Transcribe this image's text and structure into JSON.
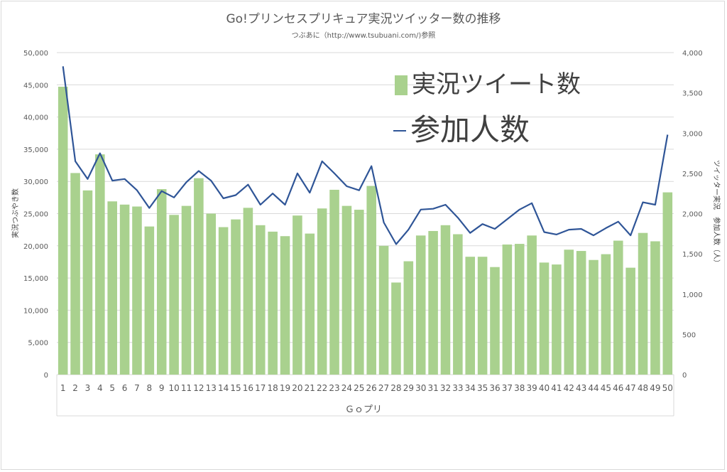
{
  "chart_data": {
    "type": "bar",
    "title": "Go!プリンセスプリキュア実況ツイッター数の推移",
    "subtitle": "つぶあに（http://www.tsubuani.com/)参照",
    "xlabel": "Ｇｏプリ",
    "ylabel": "実況つぶやき数",
    "y2label": "ツイッター実況　参加人数（人）",
    "ylim": [
      0,
      50000
    ],
    "y2lim": [
      0,
      4000
    ],
    "yticks": [
      "0",
      "5,000",
      "10,000",
      "15,000",
      "20,000",
      "25,000",
      "30,000",
      "35,000",
      "40,000",
      "45,000",
      "50,000"
    ],
    "y2ticks": [
      "0",
      "500",
      "1,000",
      "1,500",
      "2,000",
      "2,500",
      "3,000",
      "3,500",
      "4,000"
    ],
    "grid": true,
    "legend_position": "top-right",
    "categories": [
      "1",
      "2",
      "3",
      "4",
      "5",
      "6",
      "7",
      "8",
      "9",
      "10",
      "11",
      "12",
      "13",
      "14",
      "15",
      "16",
      "17",
      "18",
      "19",
      "20",
      "21",
      "22",
      "23",
      "24",
      "25",
      "26",
      "27",
      "28",
      "29",
      "30",
      "31",
      "32",
      "33",
      "34",
      "35",
      "36",
      "37",
      "38",
      "39",
      "40",
      "41",
      "42",
      "43",
      "44",
      "45",
      "46",
      "47",
      "48",
      "49",
      "50"
    ],
    "series": [
      {
        "name": "実況ツイート数",
        "type": "bar",
        "axis": "left",
        "color": "#a9d18e",
        "values": [
          44700,
          31300,
          28600,
          34200,
          26900,
          26400,
          26100,
          23000,
          28800,
          24800,
          26200,
          30500,
          25000,
          22900,
          24100,
          25900,
          23200,
          22200,
          21500,
          24700,
          21900,
          25800,
          28700,
          26200,
          25600,
          29300,
          20000,
          14300,
          17600,
          21600,
          22300,
          23200,
          21800,
          18300,
          18300,
          16700,
          20200,
          20300,
          21600,
          17400,
          17100,
          19400,
          19200,
          17800,
          18700,
          20800,
          16600,
          22000,
          20700,
          28300
        ]
      },
      {
        "name": "参加人数",
        "type": "line",
        "axis": "right",
        "color": "#2f5597",
        "values": [
          3830,
          2650,
          2430,
          2750,
          2410,
          2430,
          2290,
          2070,
          2280,
          2200,
          2390,
          2530,
          2410,
          2190,
          2230,
          2360,
          2110,
          2250,
          2110,
          2500,
          2260,
          2650,
          2500,
          2340,
          2290,
          2590,
          1890,
          1620,
          1800,
          2050,
          2060,
          2110,
          1950,
          1760,
          1870,
          1810,
          1930,
          2050,
          2130,
          1770,
          1740,
          1800,
          1810,
          1730,
          1820,
          1900,
          1730,
          2140,
          2110,
          2980
        ]
      }
    ]
  }
}
